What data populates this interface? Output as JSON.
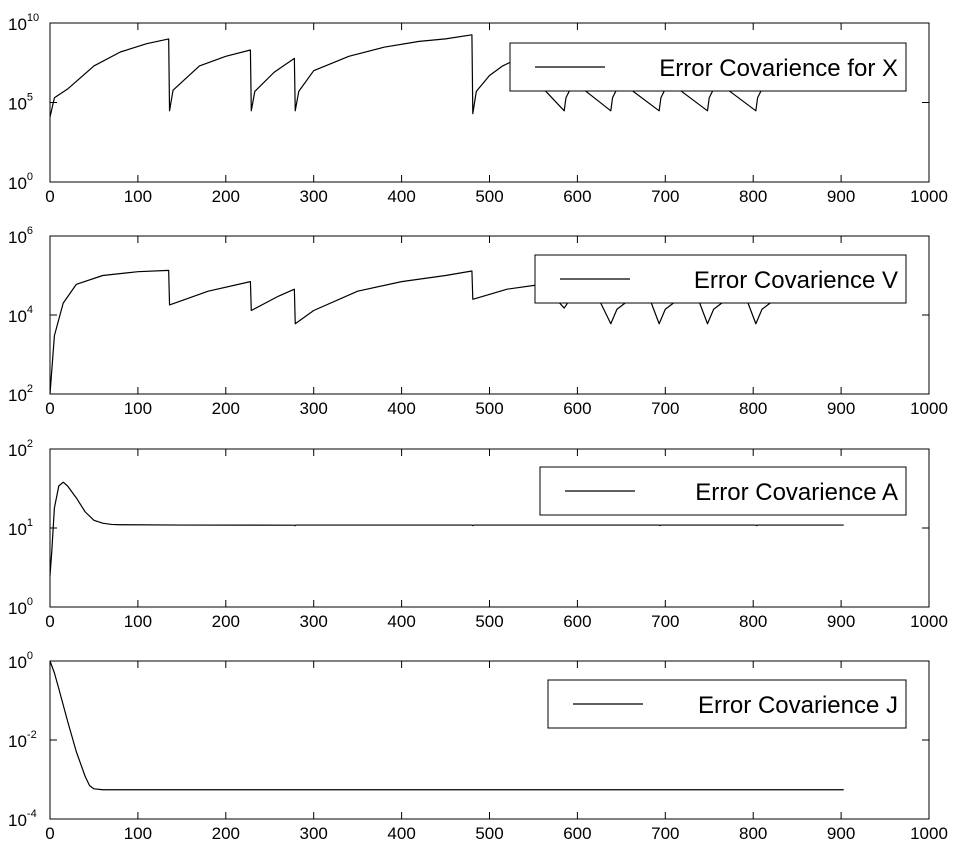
{
  "chart_data": [
    {
      "type": "line",
      "yscale": "log",
      "xlim": [
        0,
        1000
      ],
      "ylim": [
        1,
        10000000000
      ],
      "xticks": [
        0,
        100,
        200,
        300,
        400,
        500,
        600,
        700,
        800,
        900,
        1000
      ],
      "yticks": [
        {
          "base": "10",
          "exp": "0",
          "value": 1
        },
        {
          "base": "10",
          "exp": "5",
          "value": 100000
        },
        {
          "base": "10",
          "exp": "10",
          "value": 10000000000
        }
      ],
      "legend": "top-right",
      "series": [
        {
          "name": "Error Covarience for X",
          "points": [
            [
              0,
              12000
            ],
            [
              5,
              200000
            ],
            [
              20,
              700000
            ],
            [
              50,
              20000000
            ],
            [
              80,
              150000000
            ],
            [
              110,
              500000000
            ],
            [
              135,
              1000000000
            ],
            [
              136,
              30000
            ],
            [
              140,
              600000
            ],
            [
              170,
              20000000
            ],
            [
              200,
              80000000
            ],
            [
              228,
              200000000
            ],
            [
              229,
              30000
            ],
            [
              233,
              500000
            ],
            [
              255,
              8000000
            ],
            [
              278,
              60000000
            ],
            [
              279,
              30000
            ],
            [
              283,
              500000
            ],
            [
              300,
              10000000
            ],
            [
              340,
              80000000
            ],
            [
              380,
              300000000
            ],
            [
              420,
              700000000
            ],
            [
              450,
              1000000000
            ],
            [
              480,
              1800000000
            ],
            [
              481,
              20000
            ],
            [
              485,
              500000
            ],
            [
              500,
              5000000
            ],
            [
              515,
              20000000
            ],
            [
              530,
              50000000
            ],
            [
              585,
              30000
            ],
            [
              587,
              200000
            ],
            [
              596,
              2000000
            ],
            [
              638,
              30000
            ],
            [
              640,
              200000
            ],
            [
              649,
              2000000
            ],
            [
              693,
              30000
            ],
            [
              695,
              200000
            ],
            [
              704,
              2000000
            ],
            [
              748,
              30000
            ],
            [
              750,
              200000
            ],
            [
              759,
              2000000
            ],
            [
              803,
              30000
            ],
            [
              805,
              200000
            ],
            [
              814,
              2000000
            ]
          ]
        }
      ]
    },
    {
      "type": "line",
      "yscale": "log",
      "xlim": [
        0,
        1000
      ],
      "ylim": [
        100,
        1000000
      ],
      "xticks": [
        0,
        100,
        200,
        300,
        400,
        500,
        600,
        700,
        800,
        900,
        1000
      ],
      "yticks": [
        {
          "base": "10",
          "exp": "2",
          "value": 100
        },
        {
          "base": "10",
          "exp": "4",
          "value": 10000
        },
        {
          "base": "10",
          "exp": "6",
          "value": 1000000
        }
      ],
      "legend": "top-right",
      "series": [
        {
          "name": "Error Covarience V",
          "points": [
            [
              0,
              100
            ],
            [
              5,
              3000
            ],
            [
              15,
              20000
            ],
            [
              30,
              60000
            ],
            [
              60,
              100000
            ],
            [
              100,
              125000
            ],
            [
              135,
              135000
            ],
            [
              136,
              18000
            ],
            [
              180,
              40000
            ],
            [
              228,
              70000
            ],
            [
              229,
              13000
            ],
            [
              260,
              30000
            ],
            [
              278,
              45000
            ],
            [
              279,
              6000
            ],
            [
              300,
              13000
            ],
            [
              350,
              40000
            ],
            [
              400,
              70000
            ],
            [
              450,
              100000
            ],
            [
              480,
              130000
            ],
            [
              481,
              25000
            ],
            [
              520,
              45000
            ],
            [
              560,
              60000
            ],
            [
              585,
              15000
            ],
            [
              590,
              22000
            ],
            [
              605,
              32000
            ],
            [
              620,
              40000
            ],
            [
              638,
              6000
            ],
            [
              645,
              14000
            ],
            [
              660,
              25000
            ],
            [
              680,
              35000
            ],
            [
              693,
              6000
            ],
            [
              700,
              14000
            ],
            [
              715,
              25000
            ],
            [
              735,
              35000
            ],
            [
              748,
              6000
            ],
            [
              755,
              14000
            ],
            [
              770,
              25000
            ],
            [
              790,
              35000
            ],
            [
              803,
              6000
            ],
            [
              810,
              14000
            ],
            [
              825,
              25000
            ],
            [
              840,
              35000
            ]
          ]
        }
      ]
    },
    {
      "type": "line",
      "yscale": "log",
      "xlim": [
        0,
        1000
      ],
      "ylim": [
        1,
        100
      ],
      "xticks": [
        0,
        100,
        200,
        300,
        400,
        500,
        600,
        700,
        800,
        900,
        1000
      ],
      "yticks": [
        {
          "base": "10",
          "exp": "0",
          "value": 1
        },
        {
          "base": "10",
          "exp": "1",
          "value": 10
        },
        {
          "base": "10",
          "exp": "2",
          "value": 100
        }
      ],
      "legend": "top-right",
      "series": [
        {
          "name": "Error Covarience A",
          "points": [
            [
              0,
              2.5
            ],
            [
              2,
              5
            ],
            [
              5,
              18
            ],
            [
              10,
              34
            ],
            [
              15,
              38
            ],
            [
              20,
              34
            ],
            [
              30,
              24
            ],
            [
              40,
              16
            ],
            [
              50,
              12.5
            ],
            [
              60,
              11.5
            ],
            [
              70,
              11.1
            ],
            [
              80,
              11
            ],
            [
              150,
              10.9
            ],
            [
              278,
              10.85
            ],
            [
              279,
              10.7
            ],
            [
              280,
              10.9
            ],
            [
              480,
              10.9
            ],
            [
              481,
              10.7
            ],
            [
              482,
              10.9
            ],
            [
              693,
              10.9
            ],
            [
              694,
              10.7
            ],
            [
              695,
              10.9
            ],
            [
              803,
              10.9
            ],
            [
              804,
              10.7
            ],
            [
              805,
              10.9
            ],
            [
              903,
              10.9
            ]
          ]
        }
      ]
    },
    {
      "type": "line",
      "yscale": "log",
      "xlim": [
        0,
        1000
      ],
      "ylim": [
        0.0001,
        1
      ],
      "xticks": [
        0,
        100,
        200,
        300,
        400,
        500,
        600,
        700,
        800,
        900,
        1000
      ],
      "yticks": [
        {
          "base": "10",
          "exp": "-4",
          "value": 0.0001
        },
        {
          "base": "10",
          "exp": "-2",
          "value": 0.01
        },
        {
          "base": "10",
          "exp": "0",
          "value": 1
        }
      ],
      "legend": "top-right",
      "series": [
        {
          "name": "Error Covarience J",
          "points": [
            [
              0,
              1
            ],
            [
              5,
              0.5
            ],
            [
              10,
              0.2
            ],
            [
              20,
              0.03
            ],
            [
              30,
              0.005
            ],
            [
              40,
              0.0012
            ],
            [
              45,
              0.0007
            ],
            [
              50,
              0.00058
            ],
            [
              60,
              0.00055
            ],
            [
              100,
              0.00055
            ],
            [
              903,
              0.00055
            ]
          ]
        }
      ]
    }
  ]
}
